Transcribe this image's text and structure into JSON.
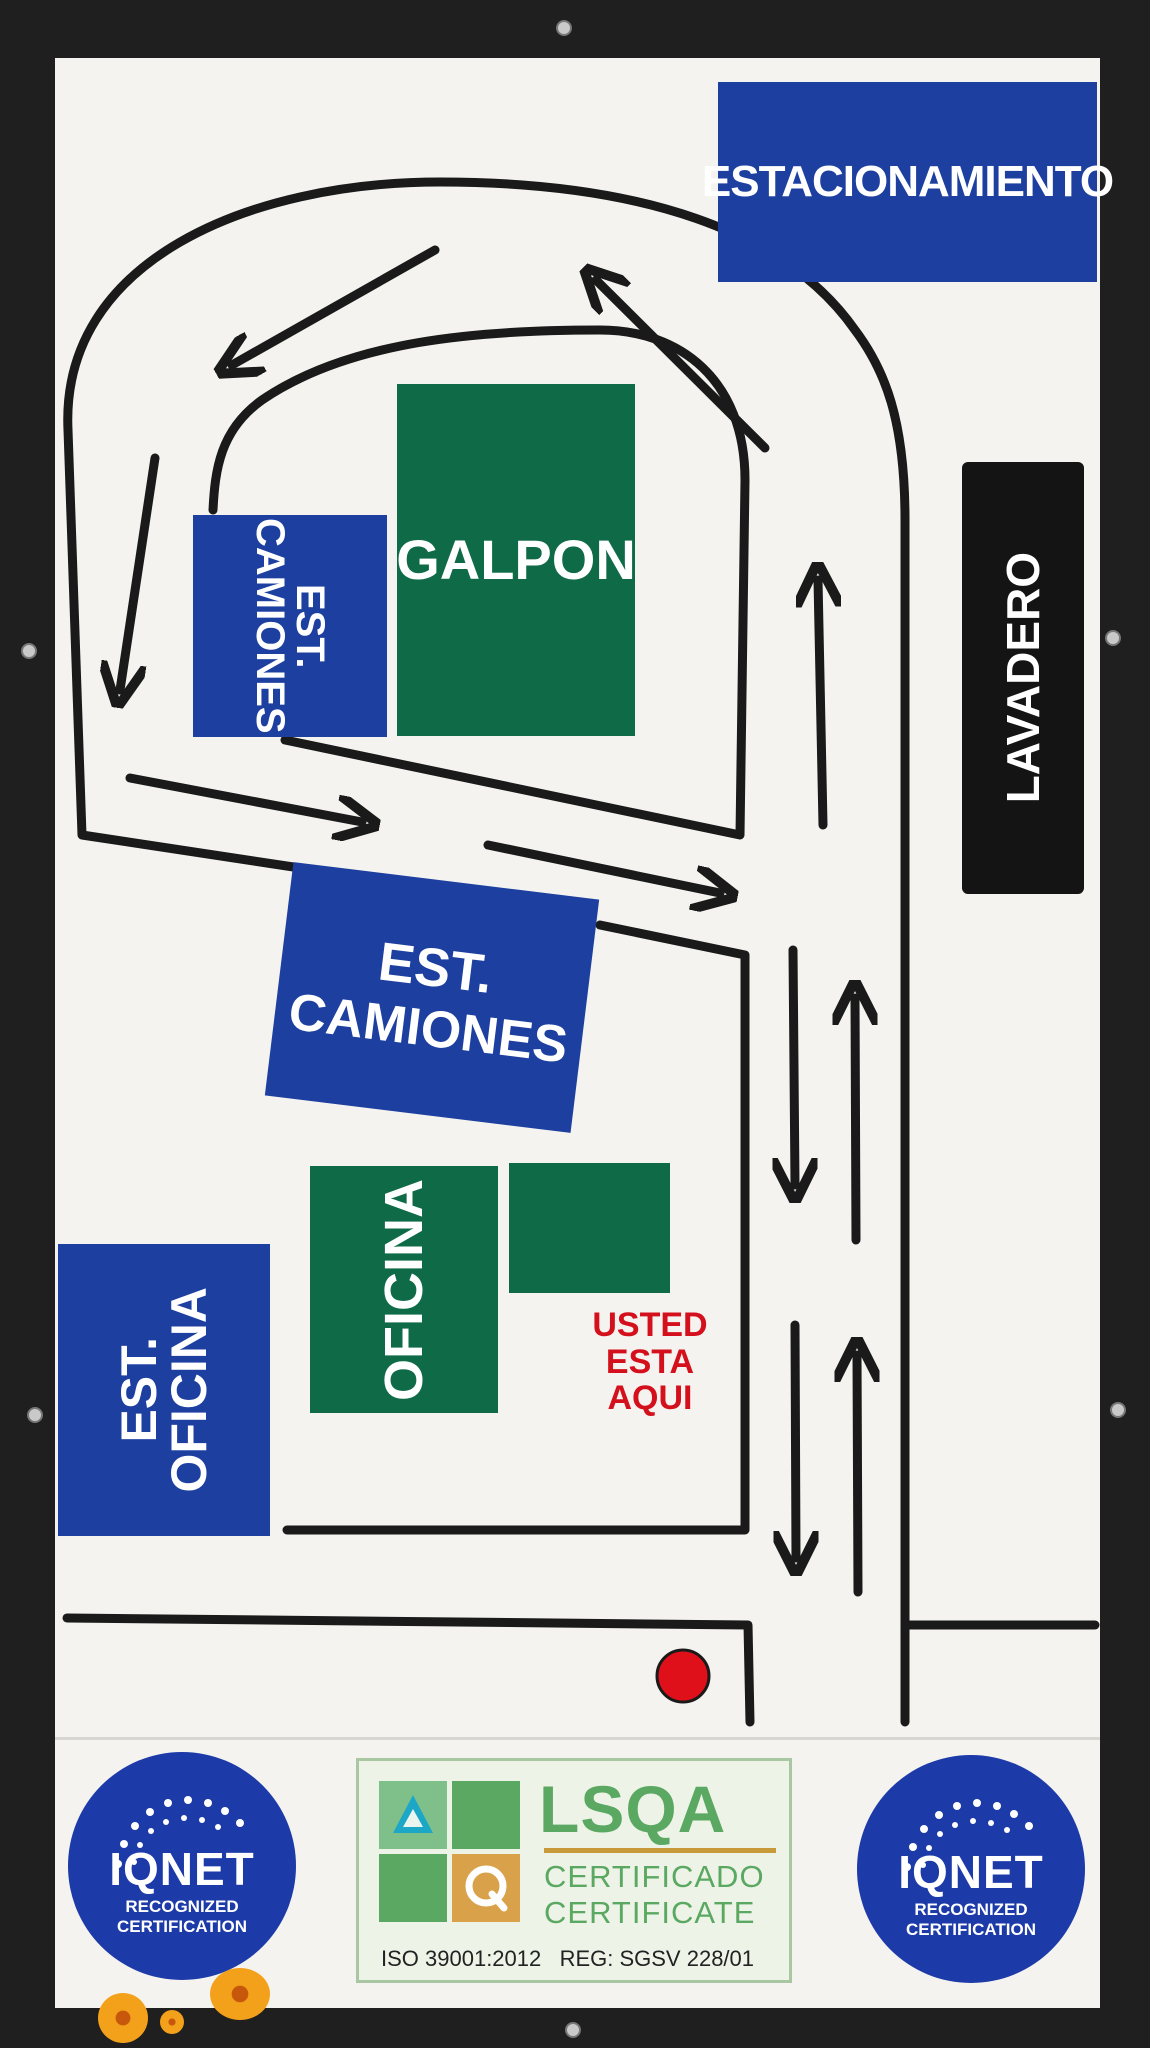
{
  "signs": {
    "estacionamiento": "ESTACIONAMIENTO",
    "lavadero": "LAVADERO",
    "galpon": "GALPON",
    "est_camiones_small": [
      "EST.",
      "CAMIONES"
    ],
    "est_camiones_large": [
      "EST.",
      "CAMIONES"
    ],
    "oficina": "OFICINA",
    "est_oficina": [
      "EST.",
      "OFICINA"
    ],
    "usted_esta_aqui": [
      "USTED",
      "ESTA",
      "AQUI"
    ]
  },
  "certifications": {
    "iqnet_left": {
      "title": "IQNET",
      "line1": "RECOGNIZED",
      "line2": "CERTIFICATION"
    },
    "iqnet_right": {
      "title": "IQNET",
      "line1": "RECOGNIZED",
      "line2": "CERTIFICATION"
    },
    "lsqa": {
      "brand": "LSQA",
      "line1": "CERTIFICADO",
      "line2": "CERTIFICATE",
      "iso": "ISO 39001:2012   REG: SGSV 228/01"
    }
  },
  "colors": {
    "sign_blue": "#1c3fa0",
    "sign_green": "#0f6b47",
    "sign_black": "#141414",
    "here_marker": "#e0101a",
    "board": "#f4f3ef"
  }
}
